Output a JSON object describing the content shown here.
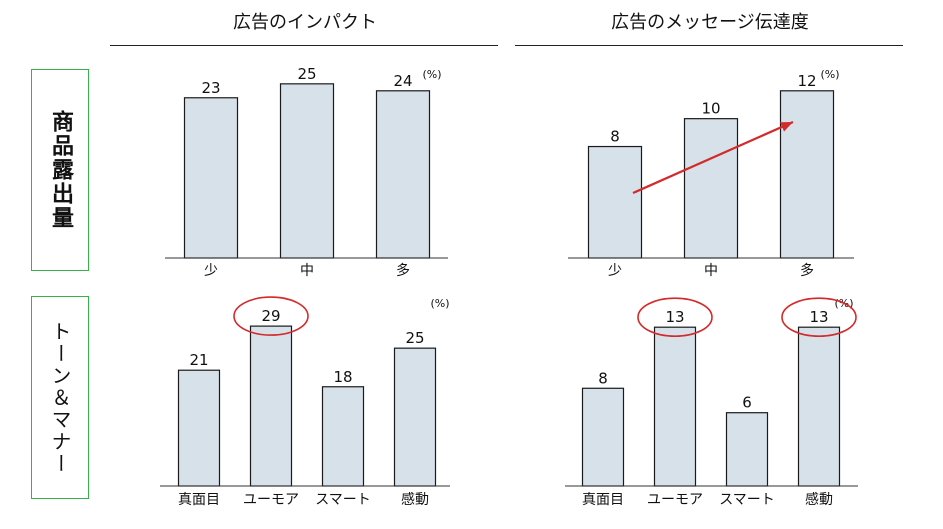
{
  "columns": [
    {
      "title": "広告のインパクト"
    },
    {
      "title": "広告のメッセージ伝達度"
    }
  ],
  "rows": [
    {
      "label": "商品露出量"
    },
    {
      "label": "トーン＆マナー"
    }
  ],
  "colors": {
    "bar_fill": "#d6e1ea",
    "bar_stroke": "#1a1a1a",
    "frame_green": "#36b24a",
    "highlight_red": "#d42a2a"
  },
  "chart_data": [
    {
      "type": "bar",
      "categories": [
        "少",
        "中",
        "多"
      ],
      "values": [
        23,
        25,
        24
      ],
      "unit": "(%)",
      "ylim": [
        0,
        30
      ]
    },
    {
      "type": "bar",
      "categories": [
        "少",
        "中",
        "多"
      ],
      "values": [
        8,
        10,
        12
      ],
      "unit": "(%)",
      "ylim": [
        0,
        15
      ],
      "annotation": "trend-arrow"
    },
    {
      "type": "bar",
      "categories": [
        "真面目",
        "ユーモア",
        "スマート",
        "感動"
      ],
      "values": [
        21,
        29,
        18,
        25
      ],
      "unit": "(%)",
      "ylim": [
        0,
        37
      ],
      "highlighted": [
        "ユーモア"
      ]
    },
    {
      "type": "bar",
      "categories": [
        "真面目",
        "ユーモア",
        "スマート",
        "感動"
      ],
      "values": [
        8,
        13,
        6,
        13
      ],
      "unit": "(%)",
      "ylim": [
        0,
        16.7
      ],
      "highlighted": [
        "ユーモア",
        "感動"
      ]
    }
  ]
}
